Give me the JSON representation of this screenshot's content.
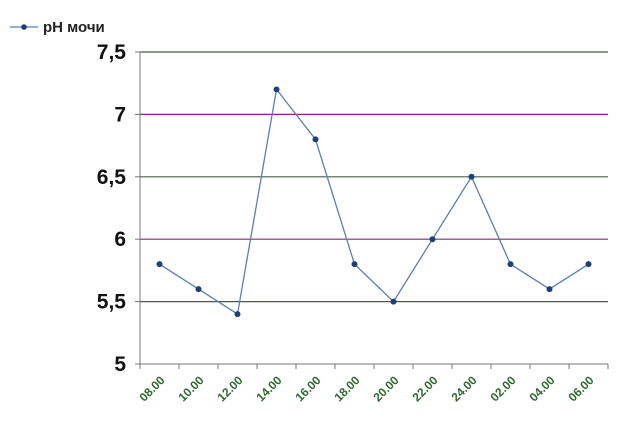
{
  "chart_data": {
    "type": "line",
    "categories": [
      "08.00",
      "10.00",
      "12.00",
      "14.00",
      "16.00",
      "18.00",
      "20.00",
      "22.00",
      "24.00",
      "02.00",
      "04.00",
      "06.00"
    ],
    "series": [
      {
        "name": "pH мочи",
        "x": [
          9,
          11,
          13,
          15,
          17,
          19,
          21,
          23,
          25,
          27,
          29,
          31
        ],
        "values": [
          5.8,
          5.6,
          5.4,
          7.2,
          6.8,
          5.8,
          5.5,
          6.0,
          6.5,
          5.8,
          5.6,
          5.8
        ]
      }
    ],
    "ylim": [
      5,
      7.5
    ],
    "yticks": [
      "5",
      "5,5",
      "6",
      "6,5",
      "7",
      "7,5"
    ],
    "ytick_values": [
      5,
      5.5,
      6,
      6.5,
      7,
      7.5
    ],
    "xlim": [
      8,
      32
    ],
    "grid": "horizontal",
    "legend": "top-left",
    "colors": {
      "line": "#5a7fb0",
      "marker": "#1f3f7a",
      "grid_major": "#7a2e7a",
      "grid_minor": "#4a5a4a",
      "axis": "#777777",
      "xtick_text": "#2e6b2e"
    }
  }
}
